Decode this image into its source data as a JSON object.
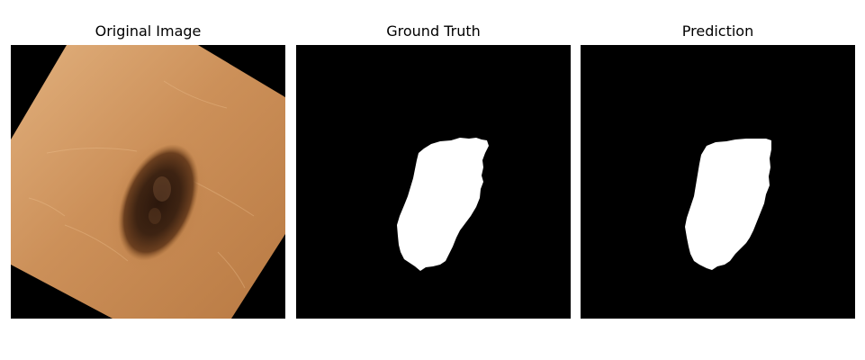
{
  "panels": [
    {
      "title": "Original Image"
    },
    {
      "title": "Ground Truth"
    },
    {
      "title": "Prediction"
    }
  ],
  "colors": {
    "background": "#000000",
    "mask": "#ffffff",
    "skin_light": "#d9a472",
    "skin_dark": "#b6773f",
    "lesion_core": "#2f1a0d",
    "lesion_edge": "#7a4a25"
  }
}
